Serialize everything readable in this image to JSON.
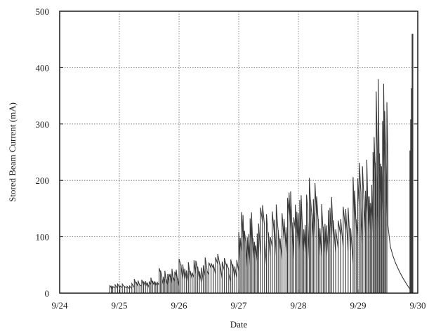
{
  "chart_data": {
    "type": "line",
    "title": "",
    "xlabel": "Date",
    "ylabel": "Stored Beam Current (mA)",
    "x_ticks": [
      "9/24",
      "9/25",
      "9/26",
      "9/27",
      "9/28",
      "9/29",
      "9/30"
    ],
    "y_ticks": [
      "0",
      "100",
      "200",
      "300",
      "400",
      "500"
    ],
    "xlim": [
      "9/24",
      "9/30"
    ],
    "ylim": [
      0,
      500
    ],
    "grid": true,
    "legend": "none",
    "series": [
      {
        "name": "",
        "color": "#3a3a3a",
        "fill_cycles": [
          {
            "start": "9/24 20:10",
            "end": "9/24 21:20",
            "n": 2,
            "peak": 18
          },
          {
            "start": "9/24 21:20",
            "end": "9/25 06:00",
            "n": 9,
            "peak": 20
          },
          {
            "start": "9/25 06:00",
            "end": "9/25 12:00",
            "n": 8,
            "peak": 25
          },
          {
            "start": "9/25 12:00",
            "end": "9/25 16:00",
            "n": 6,
            "peak": 28
          },
          {
            "start": "9/25 16:00",
            "end": "9/26 00:00",
            "n": 14,
            "peak": 45
          },
          {
            "start": "9/26 00:00",
            "end": "9/26 12:00",
            "n": 16,
            "peak": 66
          },
          {
            "start": "9/26 12:00",
            "end": "9/26 20:00",
            "n": 9,
            "peak": 70
          },
          {
            "start": "9/26 20:00",
            "end": "9/27 00:00",
            "n": 5,
            "peak": 60
          },
          {
            "start": "9/27 00:00",
            "end": "9/27 08:00",
            "n": 14,
            "peak": 150
          },
          {
            "start": "9/27 08:00",
            "end": "9/27 19:00",
            "n": 14,
            "peak": 160
          },
          {
            "start": "9/27 19:00",
            "end": "9/28 00:00",
            "n": 8,
            "peak": 190
          },
          {
            "start": "9/28 00:00",
            "end": "9/28 06:00",
            "n": 11,
            "peak": 205
          },
          {
            "start": "9/28 06:00",
            "end": "9/28 14:00",
            "n": 12,
            "peak": 200
          },
          {
            "start": "9/28 14:00",
            "end": "9/28 22:00",
            "n": 8,
            "peak": 170
          },
          {
            "start": "9/28 22:00",
            "end": "9/29 03:00",
            "n": 8,
            "peak": 235
          },
          {
            "start": "9/29 03:00",
            "end": "9/29 06:00",
            "n": 6,
            "peak": 290
          },
          {
            "start": "9/29 06:00",
            "end": "9/29 12:00",
            "n": 14,
            "peak": 380
          }
        ],
        "final_decay": {
          "start": "9/29 12:00",
          "end": "9/29 22:00",
          "from": 120,
          "to": 0
        },
        "end_spike": {
          "start": "9/29 21:00",
          "end": "9/29 22:10",
          "peak": 460
        }
      }
    ]
  }
}
